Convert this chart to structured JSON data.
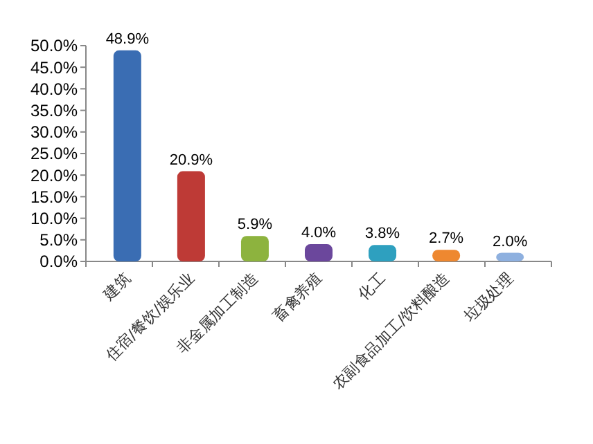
{
  "chart_data": {
    "type": "bar",
    "categories": [
      "建筑",
      "住宿/餐饮/娱乐业",
      "非金属加工制造",
      "畜禽养殖",
      "化工",
      "农副食品加工/饮料酿造",
      "垃圾处理"
    ],
    "values": [
      48.9,
      20.9,
      5.9,
      4.0,
      3.8,
      2.7,
      2.0
    ],
    "colors": [
      "#3a6db3",
      "#be3a36",
      "#8db33e",
      "#6b479c",
      "#2ea0bf",
      "#ee8830",
      "#8eb0df"
    ],
    "value_labels": [
      "48.9%",
      "20.9%",
      "5.9%",
      "4.0%",
      "3.8%",
      "2.7%",
      "2.0%"
    ],
    "ylim": [
      0,
      50
    ],
    "yticks": [
      {
        "value": 0,
        "label": "0.0%"
      },
      {
        "value": 5,
        "label": "5.0%"
      },
      {
        "value": 10,
        "label": "10.0%"
      },
      {
        "value": 15,
        "label": "15.0%"
      },
      {
        "value": 20,
        "label": "20.0%"
      },
      {
        "value": 25,
        "label": "25.0%"
      },
      {
        "value": 30,
        "label": "30.0%"
      },
      {
        "value": 35,
        "label": "35.0%"
      },
      {
        "value": 40,
        "label": "40.0%"
      },
      {
        "value": 45,
        "label": "45.0%"
      },
      {
        "value": 50,
        "label": "50.0%"
      }
    ],
    "grid": false
  }
}
